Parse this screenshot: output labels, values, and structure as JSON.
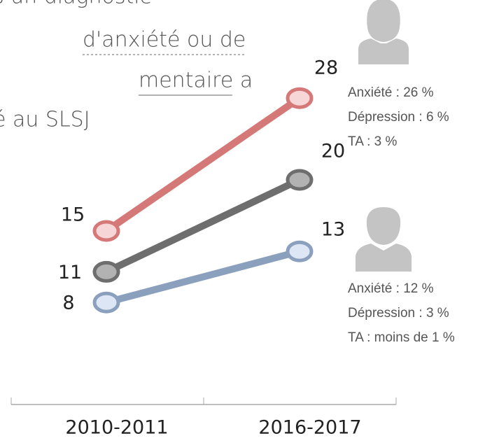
{
  "chart_data": {
    "type": "slope",
    "title_lines": [
      "s un diagnostic",
      "d'anxiété ou de",
      "mentaire a",
      "é au SLSJ"
    ],
    "categories": [
      "2010-2011",
      "2016-2017"
    ],
    "series": [
      {
        "color": "#d47878",
        "fill": "#f6d6d6",
        "values": [
          15,
          28
        ]
      },
      {
        "color": "#6e6e6e",
        "fill": "#b2b2b2",
        "values": [
          11,
          20
        ]
      },
      {
        "color": "#8aa0bd",
        "fill": "#dde6f5",
        "values": [
          8,
          13
        ]
      }
    ],
    "ylim": [
      0,
      30
    ],
    "annotations": [
      [
        "Anxiété : 26 %",
        "Dépression : 6 %",
        "TA : 3 %"
      ],
      [
        "Anxiété : 12 %",
        "Dépression : 3 %",
        "TA : moins de 1 %"
      ]
    ]
  }
}
